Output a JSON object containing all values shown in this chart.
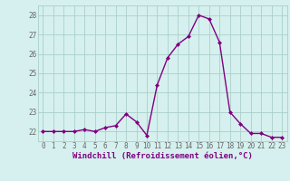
{
  "x": [
    0,
    1,
    2,
    3,
    4,
    5,
    6,
    7,
    8,
    9,
    10,
    11,
    12,
    13,
    14,
    15,
    16,
    17,
    18,
    19,
    20,
    21,
    22,
    23
  ],
  "y": [
    22.0,
    22.0,
    22.0,
    22.0,
    22.1,
    22.0,
    22.2,
    22.3,
    22.9,
    22.5,
    21.8,
    24.4,
    25.8,
    26.5,
    26.9,
    28.0,
    27.8,
    26.6,
    23.0,
    22.4,
    21.9,
    21.9,
    21.7,
    21.7
  ],
  "line_color": "#800080",
  "marker": "D",
  "marker_size": 2.0,
  "bg_color": "#d5f0ee",
  "grid_color": "#aacfca",
  "xlabel": "Windchill (Refroidissement éolien,°C)",
  "ylim": [
    21.5,
    28.5
  ],
  "yticks": [
    22,
    23,
    24,
    25,
    26,
    27,
    28
  ],
  "xticks": [
    0,
    1,
    2,
    3,
    4,
    5,
    6,
    7,
    8,
    9,
    10,
    11,
    12,
    13,
    14,
    15,
    16,
    17,
    18,
    19,
    20,
    21,
    22,
    23
  ],
  "tick_fontsize": 5.5,
  "xlabel_fontsize": 6.5,
  "line_width": 1.0
}
